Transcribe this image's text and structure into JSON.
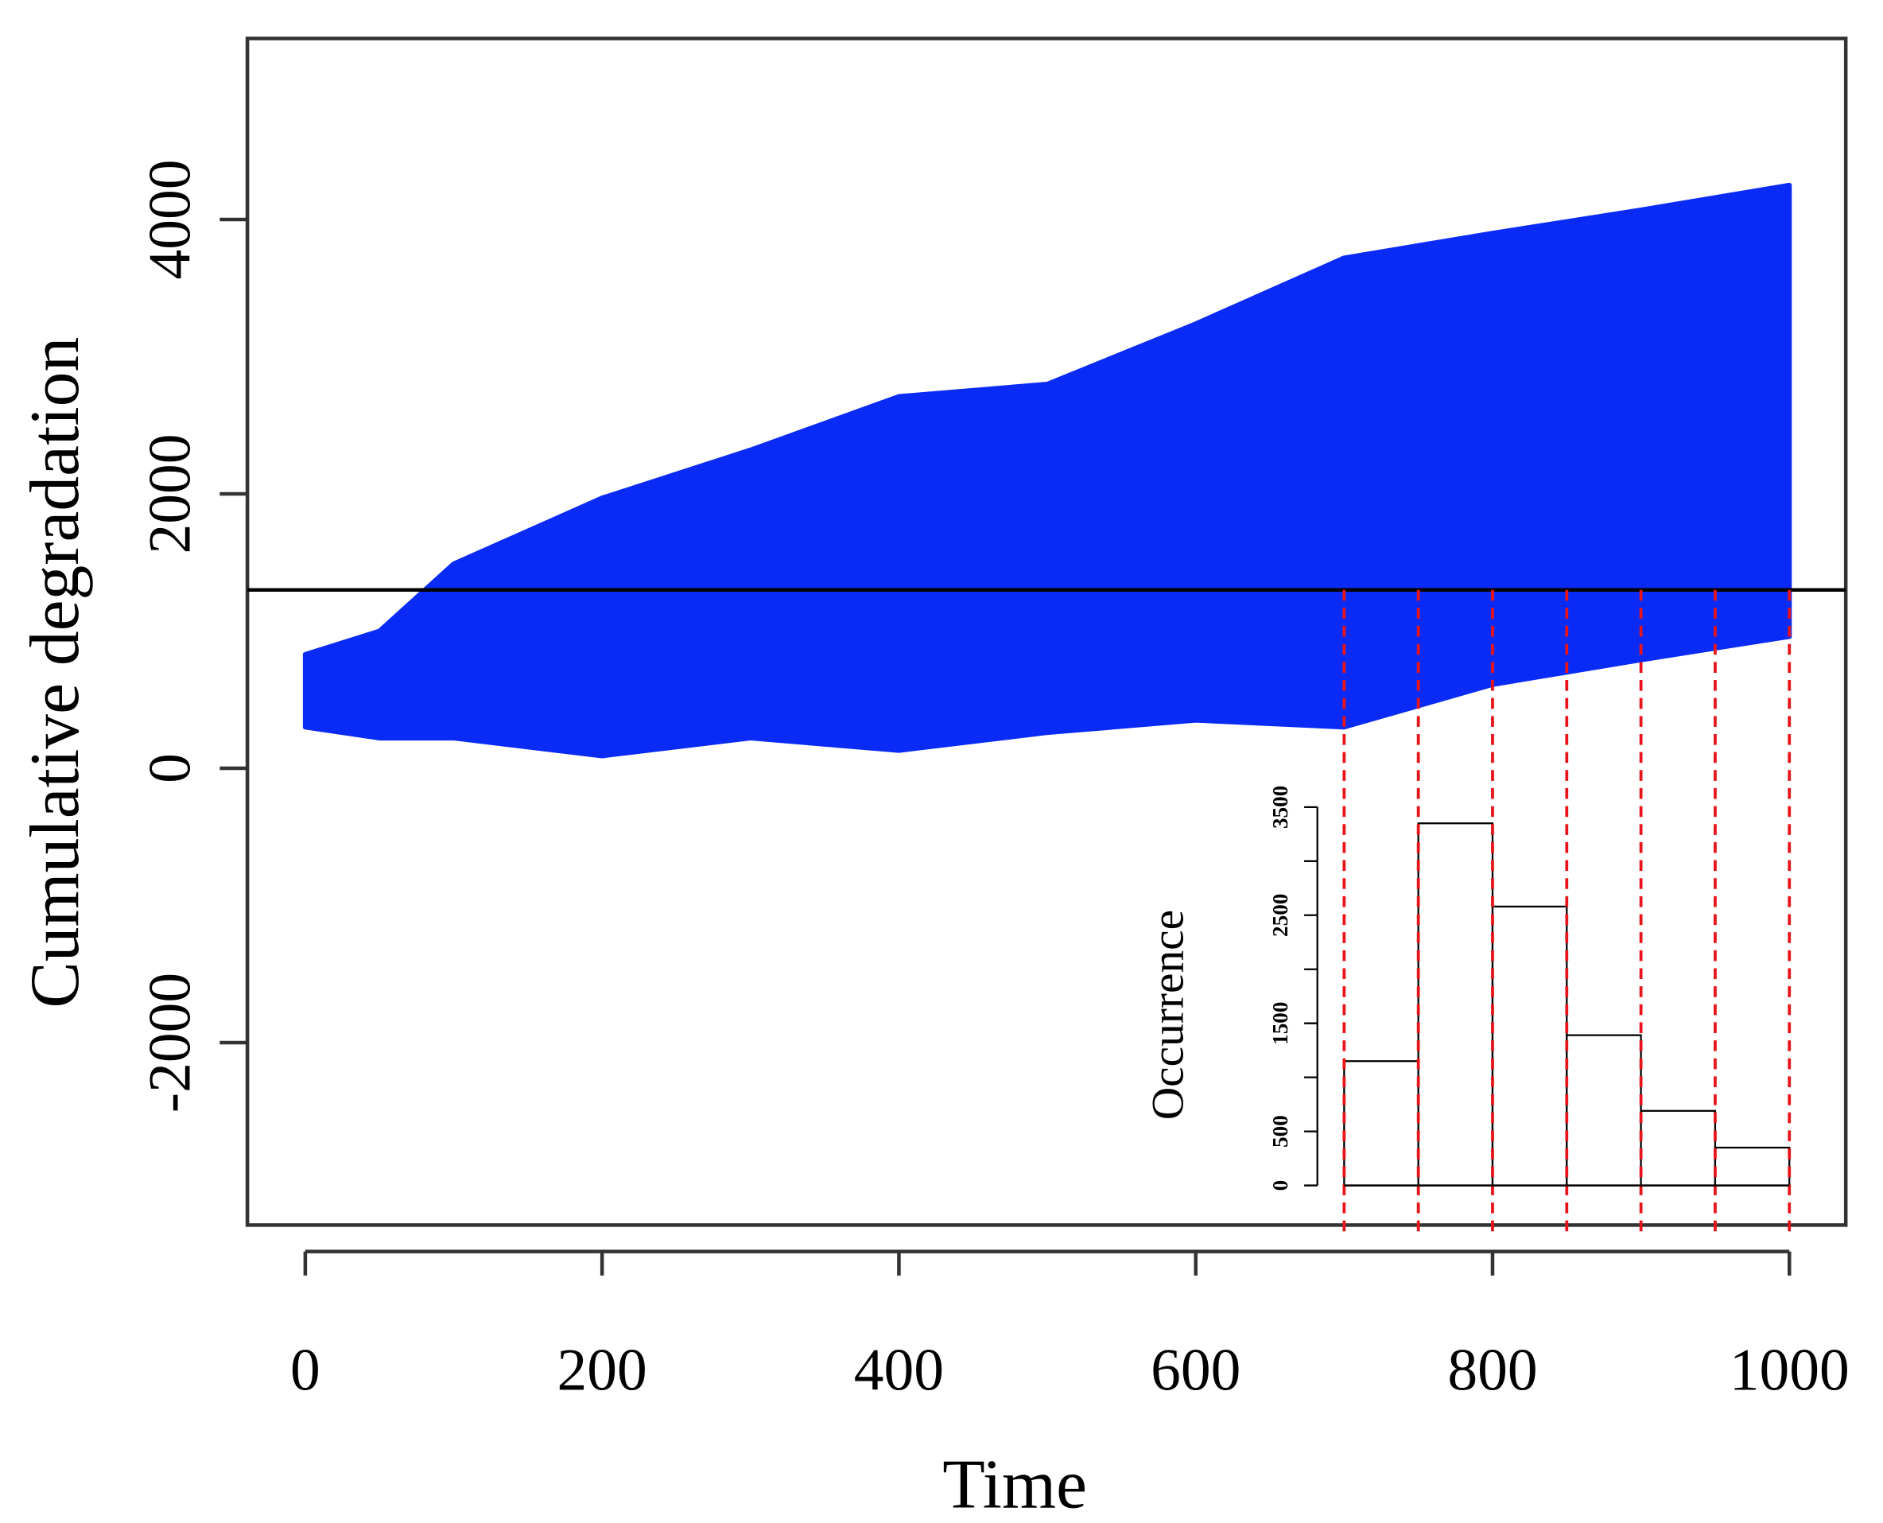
{
  "chart_data": [
    {
      "type": "band",
      "x_label": "Time",
      "y_label": "Cumulative degradation",
      "color": "#0a2bf5",
      "x": [
        0,
        50,
        100,
        200,
        300,
        400,
        500,
        600,
        700,
        800,
        900,
        1000
      ],
      "upper": [
        830,
        1000,
        1490,
        1970,
        2320,
        2710,
        2800,
        3240,
        3720,
        3900,
        4070,
        4250
      ],
      "lower": [
        300,
        220,
        220,
        90,
        220,
        130,
        260,
        350,
        300,
        610,
        790,
        960
      ],
      "threshold": 1300,
      "xlim": [
        -39,
        1038
      ],
      "xticks": [
        0,
        200,
        400,
        600,
        800,
        1000
      ],
      "ylim": [
        -3330,
        5320
      ],
      "yticks": [
        -2000,
        0,
        2000,
        4000
      ]
    },
    {
      "type": "histogram",
      "y_label": "Occurrence",
      "bins": [
        700,
        750,
        800,
        850,
        900,
        950,
        1000
      ],
      "values": [
        1150,
        3350,
        2580,
        1390,
        690,
        350
      ],
      "ylim": [
        0,
        3500
      ],
      "yticks": [
        0,
        500,
        {
          "value": 1000,
          "label": null
        },
        1500,
        {
          "value": 2000,
          "label": null
        },
        2500,
        {
          "value": 3000,
          "label": null
        },
        3500
      ]
    }
  ]
}
